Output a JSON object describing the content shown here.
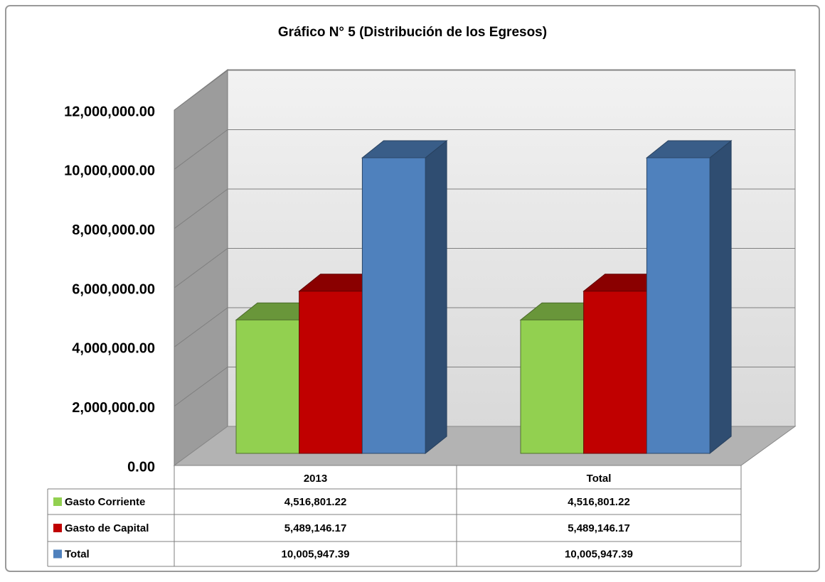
{
  "chart_data": {
    "type": "bar3d",
    "title": "Gráfico N° 5 (Distribución de los Egresos)",
    "categories": [
      "2013",
      "Total"
    ],
    "series": [
      {
        "name": "Gasto Corriente",
        "color": "#92d050",
        "values": [
          4516801.22,
          4516801.22
        ],
        "value_labels": [
          "4,516,801.22",
          "4,516,801.22"
        ]
      },
      {
        "name": "Gasto de Capital",
        "color": "#c00000",
        "values": [
          5489146.17,
          5489146.17
        ],
        "value_labels": [
          "5,489,146.17",
          "5,489,146.17"
        ]
      },
      {
        "name": "Total",
        "color": "#4f81bd",
        "values": [
          10005947.39,
          10005947.39
        ],
        "value_labels": [
          "10,005,947.39",
          "10,005,947.39"
        ]
      }
    ],
    "ylim": [
      0,
      12000000
    ],
    "yticks": [
      {
        "value": 0,
        "label": "0.00"
      },
      {
        "value": 2000000,
        "label": "2,000,000.00"
      },
      {
        "value": 4000000,
        "label": "4,000,000.00"
      },
      {
        "value": 6000000,
        "label": "6,000,000.00"
      },
      {
        "value": 8000000,
        "label": "8,000,000.00"
      },
      {
        "value": 10000000,
        "label": "10,000,000.00"
      },
      {
        "value": 12000000,
        "label": "12,000,000.00"
      }
    ],
    "grid": true
  }
}
